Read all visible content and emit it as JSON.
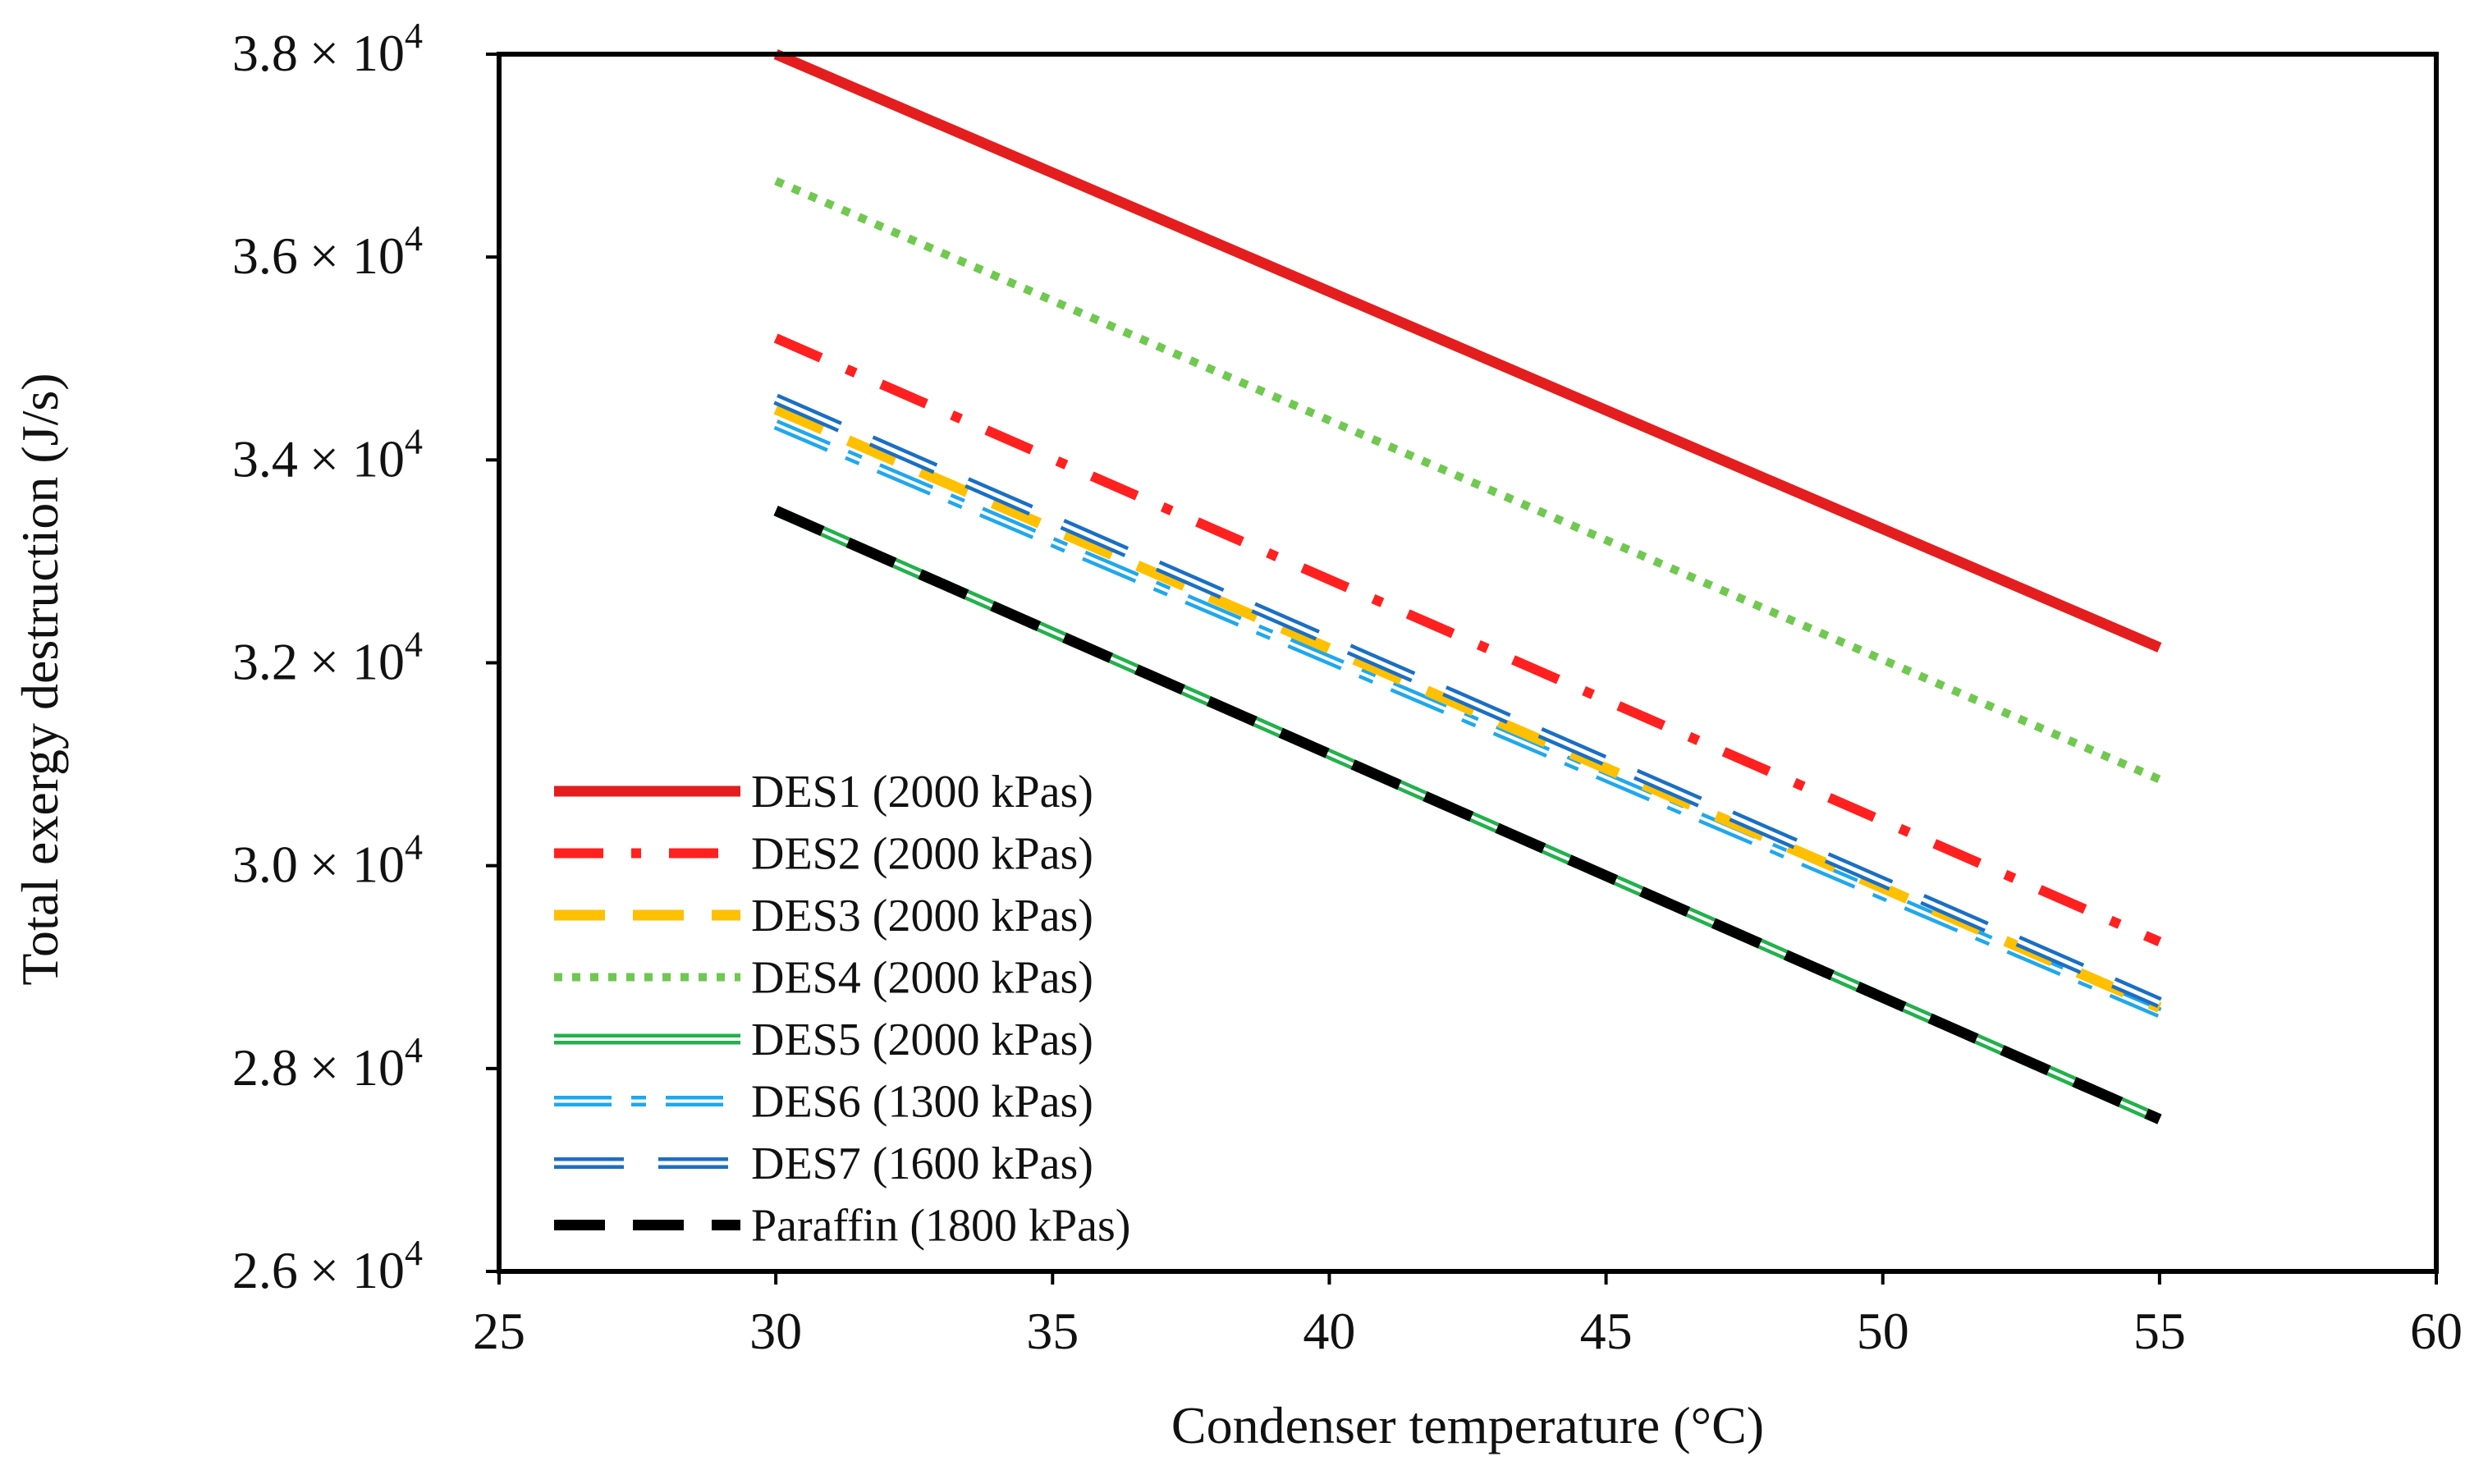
{
  "chart_data": {
    "type": "line",
    "title": "",
    "xlabel": "Condenser temperature  (°C)",
    "ylabel": "Total exergy destruction (J/s)",
    "xlim": [
      25,
      60
    ],
    "ylim": [
      26000,
      38000
    ],
    "x_ticks": [
      25,
      30,
      35,
      40,
      45,
      50,
      55,
      60
    ],
    "x_tick_labels": [
      "25",
      "30",
      "35",
      "40",
      "45",
      "50",
      "55",
      "60"
    ],
    "y_ticks": [
      26000,
      28000,
      30000,
      32000,
      34000,
      36000,
      38000
    ],
    "y_tick_mantissas": [
      "2.6",
      "2.8",
      "3.0",
      "3.2",
      "3.4",
      "3.6",
      "3.8"
    ],
    "y_tick_multiplier": "× 10",
    "y_tick_exponent": "4",
    "grid": false,
    "legend_position": "bottom-left",
    "x": [
      30,
      55
    ],
    "series": [
      {
        "name": "DES1 (2000 kPas)",
        "values": [
          38000,
          32150
        ],
        "color": "#e41e1e",
        "style": "solid"
      },
      {
        "name": "DES2 (2000 kPas)",
        "values": [
          35200,
          29250
        ],
        "color": "#ff2020",
        "style": "dashdot"
      },
      {
        "name": "DES3 (2000 kPas)",
        "values": [
          34500,
          28600
        ],
        "color": "#ffc000",
        "style": "dash"
      },
      {
        "name": "DES4 (2000 kPas)",
        "values": [
          36750,
          30850
        ],
        "color": "#70c850",
        "style": "dot"
      },
      {
        "name": "DES5 (2000 kPas)",
        "values": [
          33500,
          27500
        ],
        "color": "#22b14c",
        "style": "double"
      },
      {
        "name": "DES6 (1300 kPas)",
        "values": [
          34350,
          28550
        ],
        "color": "#1fa8ec",
        "style": "double-dashdot"
      },
      {
        "name": "DES7 (1600 kPas)",
        "values": [
          34600,
          28650
        ],
        "color": "#1a6fc4",
        "style": "double-dash"
      },
      {
        "name": "Paraffin (1800 kPas)",
        "values": [
          33500,
          27500
        ],
        "color": "#000000",
        "style": "dash"
      }
    ]
  }
}
